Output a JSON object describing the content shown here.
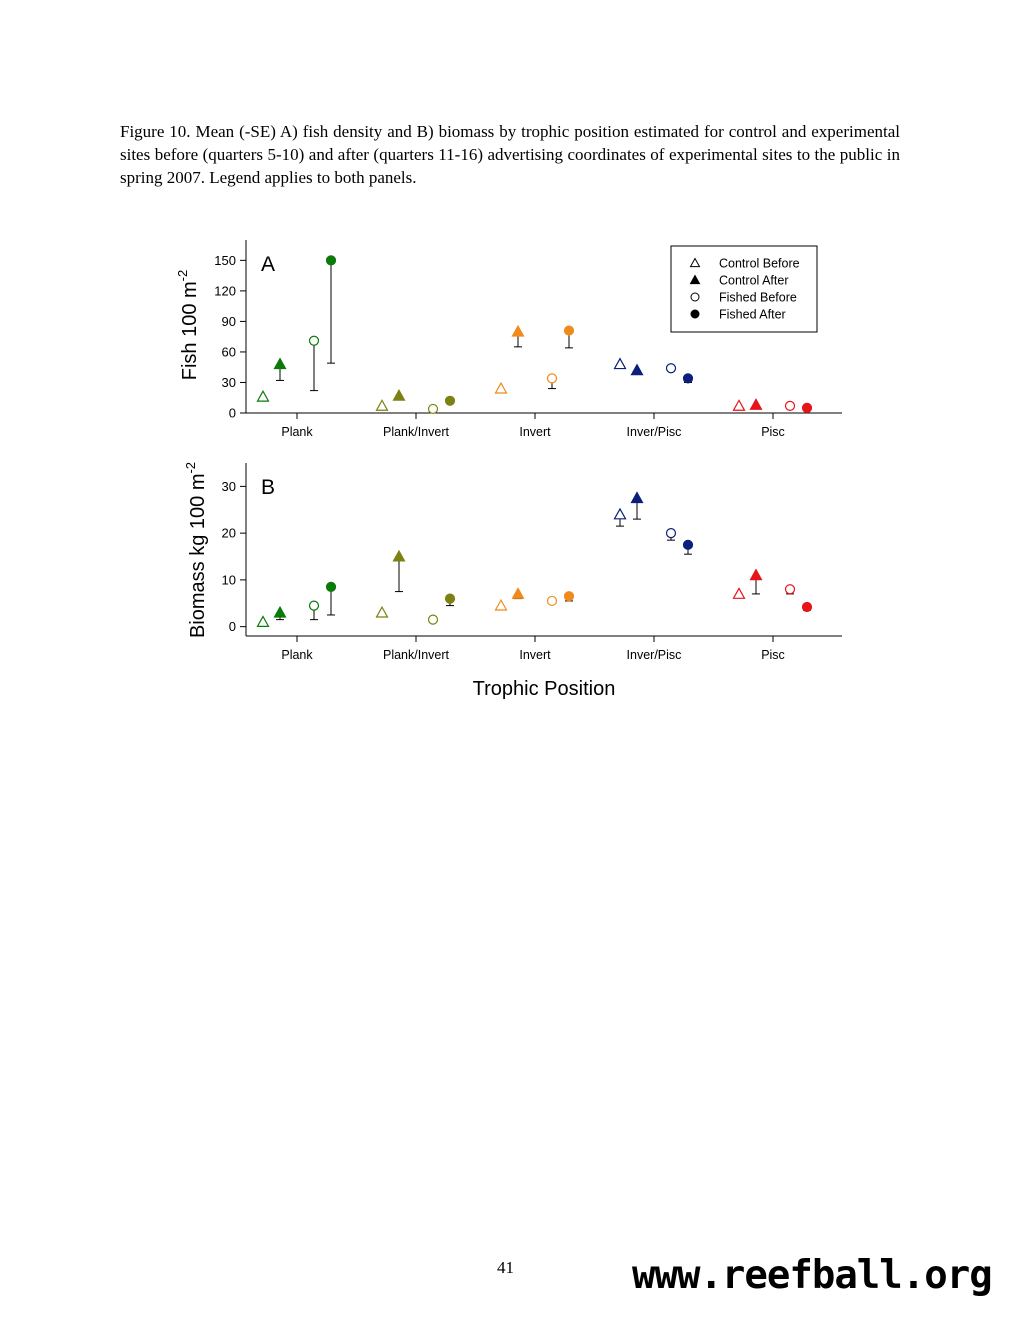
{
  "caption": "Figure 10.  Mean (-SE) A) fish density and B) biomass by trophic position estimated for control and experimental sites before (quarters 5-10) and after (quarters 11-16) advertising coordinates of experimental sites to the public in spring 2007.  Legend applies to both panels.",
  "page_number": "41",
  "watermark": "www.reefball.org",
  "icons": {
    "control_before": "open-triangle-icon",
    "control_after": "filled-triangle-icon",
    "fished_before": "open-circle-icon",
    "fished_after": "filled-circle-icon"
  },
  "chart_data": [
    {
      "type": "scatter",
      "panel_label": "A",
      "ylabel": "Fish 100 m",
      "ylabel_sup": "-2",
      "xlabel": "",
      "ylim": [
        0,
        170
      ],
      "yticks": [
        0,
        30,
        60,
        90,
        120,
        150
      ],
      "categories": [
        "Plank",
        "Plank/Invert",
        "Invert",
        "Inver/Pisc",
        "Pisc"
      ],
      "category_colors": [
        "#0a7a0a",
        "#7d8012",
        "#f08a1a",
        "#0c1f7a",
        "#e8141a"
      ],
      "legend": {
        "position": "top-right",
        "entries": [
          "Control Before",
          "Control After",
          "Fished Before",
          "Fished After"
        ]
      },
      "series": [
        {
          "name": "Control Before",
          "marker": "open-triangle",
          "values": [
            16,
            7,
            24,
            48,
            7
          ],
          "error_low": [
            12,
            6,
            22,
            46,
            6
          ]
        },
        {
          "name": "Control After",
          "marker": "filled-triangle",
          "values": [
            48,
            17,
            80,
            42,
            8
          ],
          "error_low": [
            32,
            14,
            65,
            38,
            7
          ]
        },
        {
          "name": "Fished Before",
          "marker": "open-circle",
          "values": [
            71,
            4,
            34,
            44,
            7
          ],
          "error_low": [
            22,
            3,
            24,
            42,
            6
          ]
        },
        {
          "name": "Fished After",
          "marker": "filled-circle",
          "values": [
            150,
            12,
            81,
            34,
            5
          ],
          "error_low": [
            49,
            10,
            64,
            30,
            4
          ]
        }
      ]
    },
    {
      "type": "scatter",
      "panel_label": "B",
      "ylabel": "Biomass kg 100 m",
      "ylabel_sup": "-2",
      "xlabel": "Trophic Position",
      "ylim": [
        -2,
        35
      ],
      "yticks": [
        0,
        10,
        20,
        30
      ],
      "categories": [
        "Plank",
        "Plank/Invert",
        "Invert",
        "Inver/Pisc",
        "Pisc"
      ],
      "category_colors": [
        "#0a7a0a",
        "#7d8012",
        "#f08a1a",
        "#0c1f7a",
        "#e8141a"
      ],
      "series": [
        {
          "name": "Control Before",
          "marker": "open-triangle",
          "values": [
            1,
            3,
            4.5,
            24,
            7
          ],
          "error_low": [
            0.5,
            2.5,
            4,
            21.5,
            6.5
          ]
        },
        {
          "name": "Control After",
          "marker": "filled-triangle",
          "values": [
            3,
            15,
            7,
            27.5,
            11
          ],
          "error_low": [
            1.5,
            7.5,
            6,
            23,
            7
          ]
        },
        {
          "name": "Fished Before",
          "marker": "open-circle",
          "values": [
            4.5,
            1.5,
            5.5,
            20,
            8
          ],
          "error_low": [
            1.5,
            1,
            5,
            18.5,
            7
          ]
        },
        {
          "name": "Fished After",
          "marker": "filled-circle",
          "values": [
            8.5,
            6,
            6.5,
            17.5,
            4.2
          ],
          "error_low": [
            2.5,
            4.5,
            5.5,
            15.5,
            3.5
          ]
        }
      ]
    }
  ]
}
